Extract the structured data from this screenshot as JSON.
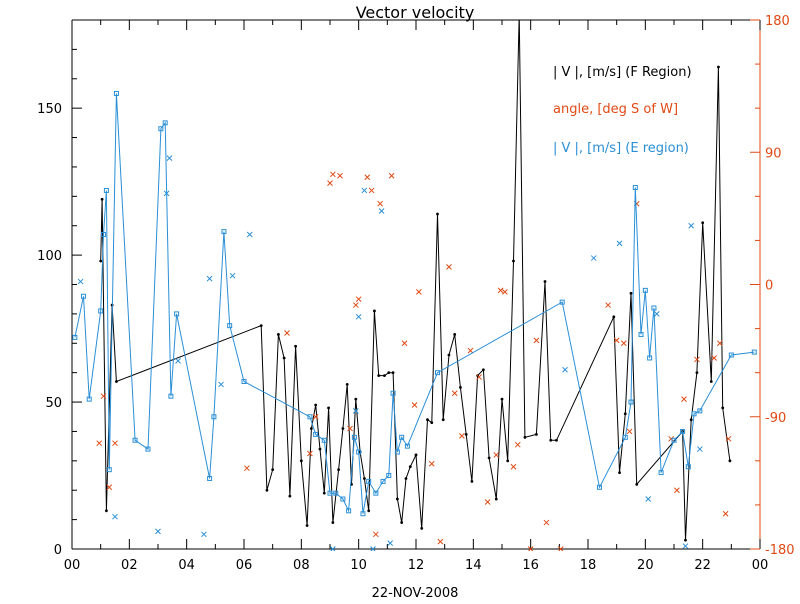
{
  "chart_data": {
    "type": "line",
    "title": "Vector velocity",
    "xlabel": "22-NOV-2008",
    "x_ticks": [
      "00",
      "02",
      "04",
      "06",
      "08",
      "10",
      "12",
      "14",
      "16",
      "18",
      "20",
      "22",
      "00"
    ],
    "x_range": [
      0,
      24
    ],
    "y_left_range": [
      0,
      180
    ],
    "y_left_ticks": [
      "0",
      "50",
      "100",
      "150"
    ],
    "y_right_range": [
      -180,
      180
    ],
    "y_right_ticks": [
      "-180",
      "-90",
      "0",
      "90",
      "180"
    ],
    "grid": false,
    "legend_position": "top-right",
    "series": [
      {
        "name": "| V |, [m/s] (F Region)",
        "color": "#000000",
        "axis": "left",
        "marker": "dot",
        "points": [
          [
            1.0,
            98
          ],
          [
            1.05,
            119
          ],
          [
            1.2,
            13
          ],
          [
            1.4,
            83
          ],
          [
            1.55,
            57
          ],
          [
            6.6,
            76
          ],
          [
            6.8,
            20
          ],
          [
            7.0,
            27
          ],
          [
            7.2,
            73
          ],
          [
            7.4,
            65
          ],
          [
            7.6,
            18
          ],
          [
            7.8,
            69
          ],
          [
            8.0,
            30
          ],
          [
            8.2,
            8
          ],
          [
            8.35,
            41
          ],
          [
            8.5,
            49
          ],
          [
            8.65,
            34
          ],
          [
            8.8,
            19
          ],
          [
            8.95,
            48
          ],
          [
            9.1,
            9
          ],
          [
            9.3,
            27
          ],
          [
            9.45,
            41
          ],
          [
            9.6,
            56
          ],
          [
            9.75,
            22
          ],
          [
            9.9,
            51
          ],
          [
            10.05,
            33
          ],
          [
            10.2,
            24
          ],
          [
            10.35,
            13
          ],
          [
            10.55,
            81
          ],
          [
            10.7,
            59
          ],
          [
            10.9,
            59
          ],
          [
            11.05,
            60
          ],
          [
            11.2,
            60
          ],
          [
            11.35,
            17
          ],
          [
            11.5,
            9
          ],
          [
            11.65,
            24
          ],
          [
            11.8,
            28
          ],
          [
            12.0,
            32
          ],
          [
            12.2,
            7
          ],
          [
            12.4,
            44
          ],
          [
            12.55,
            43
          ],
          [
            12.75,
            114
          ],
          [
            12.95,
            44
          ],
          [
            13.15,
            66
          ],
          [
            13.35,
            73
          ],
          [
            13.55,
            55
          ],
          [
            13.75,
            39
          ],
          [
            13.95,
            23
          ],
          [
            14.15,
            59
          ],
          [
            14.35,
            61
          ],
          [
            14.55,
            31
          ],
          [
            14.8,
            17
          ],
          [
            15.0,
            51
          ],
          [
            15.2,
            30
          ],
          [
            15.4,
            98
          ],
          [
            15.6,
            182
          ],
          [
            15.8,
            38
          ],
          [
            16.2,
            39
          ],
          [
            16.5,
            91
          ],
          [
            16.7,
            37
          ],
          [
            16.9,
            37
          ],
          [
            18.9,
            79
          ],
          [
            19.1,
            26
          ],
          [
            19.3,
            46
          ],
          [
            19.5,
            87
          ],
          [
            19.7,
            22
          ],
          [
            21.3,
            40
          ],
          [
            21.4,
            3
          ],
          [
            21.6,
            44
          ],
          [
            21.8,
            60
          ],
          [
            22.0,
            111
          ],
          [
            22.3,
            57
          ],
          [
            22.55,
            164
          ],
          [
            22.7,
            48
          ],
          [
            22.95,
            30
          ]
        ]
      },
      {
        "name": "angle, [deg S of W]",
        "color": "#e04a14",
        "axis": "right",
        "marker": "x",
        "points": [
          [
            0.95,
            -108
          ],
          [
            1.1,
            -76
          ],
          [
            1.3,
            -138
          ],
          [
            1.5,
            -108
          ],
          [
            6.1,
            -125
          ],
          [
            7.5,
            -33
          ],
          [
            8.3,
            -115
          ],
          [
            8.5,
            -90
          ],
          [
            9.0,
            69
          ],
          [
            9.1,
            75
          ],
          [
            9.35,
            74
          ],
          [
            9.7,
            -98
          ],
          [
            9.9,
            -14
          ],
          [
            10.0,
            -10
          ],
          [
            10.3,
            73
          ],
          [
            10.45,
            64
          ],
          [
            10.6,
            -170
          ],
          [
            10.75,
            55
          ],
          [
            11.15,
            74
          ],
          [
            11.6,
            -40
          ],
          [
            11.95,
            -82
          ],
          [
            12.1,
            -5
          ],
          [
            12.55,
            -122
          ],
          [
            12.85,
            -175
          ],
          [
            13.15,
            12
          ],
          [
            13.35,
            -74
          ],
          [
            13.6,
            -103
          ],
          [
            13.9,
            -45
          ],
          [
            14.2,
            -63
          ],
          [
            14.5,
            -148
          ],
          [
            14.8,
            -116
          ],
          [
            14.95,
            -4
          ],
          [
            15.1,
            -5
          ],
          [
            15.4,
            -124
          ],
          [
            15.55,
            -109
          ],
          [
            16.0,
            -180
          ],
          [
            16.2,
            -38
          ],
          [
            16.55,
            -162
          ],
          [
            17.05,
            -180
          ],
          [
            18.7,
            -14
          ],
          [
            19.0,
            -38
          ],
          [
            19.25,
            -40
          ],
          [
            19.45,
            -100
          ],
          [
            19.7,
            55
          ],
          [
            20.9,
            -105
          ],
          [
            21.1,
            -140
          ],
          [
            21.35,
            -78
          ],
          [
            21.8,
            -51
          ],
          [
            22.4,
            -50
          ],
          [
            22.6,
            -40
          ],
          [
            22.8,
            -156
          ],
          [
            22.9,
            -105
          ]
        ]
      },
      {
        "name": "| V |, [m/s] (E region)",
        "color": "#2a8fd6",
        "axis": "left",
        "marker": "square",
        "points": [
          [
            0.1,
            72
          ],
          [
            0.4,
            86
          ],
          [
            0.6,
            51
          ],
          [
            1.0,
            81
          ],
          [
            1.1,
            107
          ],
          [
            1.2,
            122
          ],
          [
            1.3,
            27
          ],
          [
            1.55,
            155
          ],
          [
            2.2,
            37
          ],
          [
            2.65,
            34
          ],
          [
            3.1,
            143
          ],
          [
            3.25,
            145
          ],
          [
            3.45,
            52
          ],
          [
            3.65,
            80
          ],
          [
            4.8,
            24
          ],
          [
            4.95,
            45
          ],
          [
            5.3,
            108
          ],
          [
            5.5,
            76
          ],
          [
            6.0,
            57
          ],
          [
            8.3,
            45
          ],
          [
            8.5,
            39
          ],
          [
            8.8,
            37
          ],
          [
            9.0,
            19
          ],
          [
            9.2,
            19
          ],
          [
            9.45,
            17
          ],
          [
            9.65,
            13
          ],
          [
            9.85,
            38
          ],
          [
            10.0,
            33
          ],
          [
            10.15,
            12
          ],
          [
            10.35,
            23
          ],
          [
            10.6,
            19
          ],
          [
            10.85,
            23
          ],
          [
            11.05,
            25
          ],
          [
            11.2,
            53
          ],
          [
            11.35,
            33
          ],
          [
            11.5,
            38
          ],
          [
            11.7,
            35
          ],
          [
            12.75,
            60
          ],
          [
            17.1,
            84
          ],
          [
            18.4,
            21
          ],
          [
            19.3,
            38
          ],
          [
            19.5,
            50
          ],
          [
            19.65,
            123
          ],
          [
            19.85,
            73
          ],
          [
            20.0,
            88
          ],
          [
            20.15,
            65
          ],
          [
            20.3,
            82
          ],
          [
            20.55,
            26
          ],
          [
            21.0,
            37
          ],
          [
            21.3,
            40
          ],
          [
            21.5,
            28
          ],
          [
            21.7,
            46
          ],
          [
            21.9,
            47
          ],
          [
            23.0,
            66
          ],
          [
            23.8,
            67
          ]
        ],
        "extra_marks": [
          [
            0.3,
            91
          ],
          [
            1.5,
            11
          ],
          [
            3.0,
            6
          ],
          [
            3.3,
            121
          ],
          [
            3.4,
            133
          ],
          [
            3.7,
            64
          ],
          [
            4.6,
            5
          ],
          [
            4.8,
            92
          ],
          [
            5.2,
            56
          ],
          [
            5.6,
            93
          ],
          [
            6.2,
            107
          ],
          [
            9.1,
            0
          ],
          [
            9.9,
            47
          ],
          [
            10.0,
            79
          ],
          [
            10.2,
            122
          ],
          [
            10.5,
            0
          ],
          [
            10.8,
            115
          ],
          [
            11.1,
            2
          ],
          [
            17.2,
            61
          ],
          [
            18.2,
            99
          ],
          [
            19.1,
            104
          ],
          [
            20.1,
            17
          ],
          [
            20.4,
            80
          ],
          [
            21.4,
            1
          ],
          [
            21.6,
            110
          ],
          [
            21.9,
            34
          ]
        ]
      }
    ]
  }
}
